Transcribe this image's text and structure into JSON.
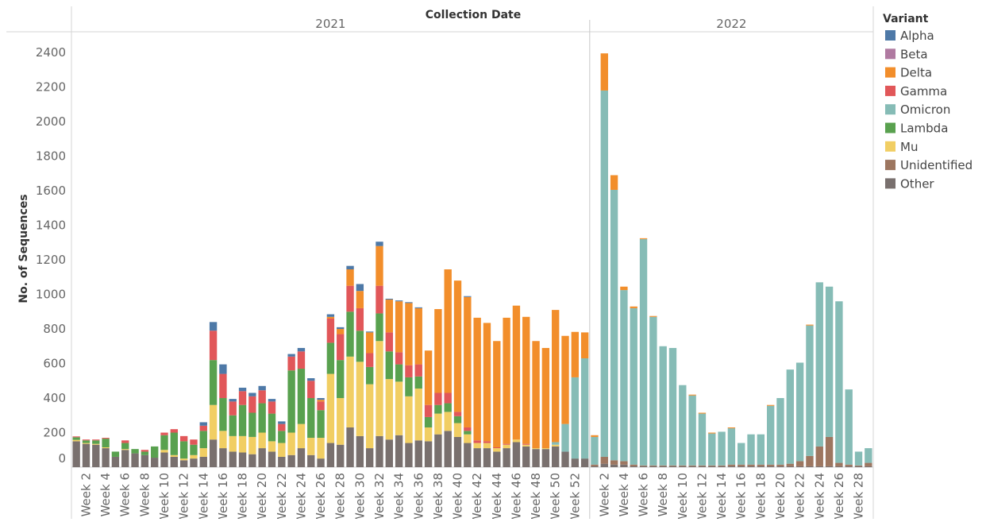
{
  "chart_data": [
    {
      "type": "bar",
      "stacked": true,
      "title": "Collection Date",
      "panel_label": "2021",
      "y_label": "No. of Sequences",
      "legend_title": "Variant",
      "ylim": [
        0,
        2520
      ],
      "yticks": [
        0,
        200,
        400,
        600,
        800,
        1000,
        1200,
        1400,
        1600,
        1800,
        2000,
        2200,
        2400
      ],
      "categories": [
        null,
        "Week 2",
        null,
        "Week 4",
        null,
        "Week 6",
        null,
        "Week 8",
        null,
        "Week 10",
        null,
        "Week 12",
        null,
        "Week 14",
        null,
        "Week 16",
        null,
        "Week 18",
        null,
        "Week 20",
        null,
        "Week 22",
        null,
        "Week 24",
        null,
        "Week 26",
        null,
        "Week 28",
        null,
        "Week 30",
        null,
        "Week 32",
        null,
        "Week 34",
        null,
        "Week 36",
        null,
        "Week 38",
        null,
        "Week 40",
        null,
        "Week 42",
        null,
        "Week 44",
        null,
        "Week 46",
        null,
        "Week 48",
        null,
        "Week 50",
        null,
        "Week 52",
        null
      ],
      "series": [
        {
          "name": "Alpha",
          "color": "#4e79a7",
          "values": [
            0,
            0,
            0,
            0,
            0,
            0,
            0,
            0,
            0,
            0,
            0,
            0,
            0,
            20,
            50,
            55,
            15,
            20,
            20,
            25,
            15,
            15,
            15,
            20,
            15,
            10,
            15,
            10,
            20,
            40,
            5,
            25,
            5,
            5,
            5,
            5,
            0,
            0,
            0,
            0,
            5,
            0,
            0,
            0,
            0,
            0,
            0,
            0,
            0,
            0,
            0,
            0,
            0
          ]
        },
        {
          "name": "Beta",
          "color": "#b07aa1",
          "values": [
            0,
            0,
            0,
            0,
            0,
            0,
            0,
            0,
            0,
            0,
            0,
            0,
            0,
            0,
            0,
            0,
            0,
            0,
            0,
            0,
            0,
            0,
            0,
            0,
            0,
            0,
            0,
            0,
            0,
            0,
            0,
            0,
            0,
            0,
            0,
            0,
            0,
            0,
            0,
            0,
            0,
            0,
            0,
            0,
            0,
            0,
            0,
            0,
            0,
            0,
            0,
            0,
            0
          ]
        },
        {
          "name": "Delta",
          "color": "#f28e2b",
          "values": [
            0,
            0,
            0,
            0,
            0,
            0,
            0,
            0,
            0,
            0,
            0,
            0,
            0,
            0,
            0,
            0,
            0,
            0,
            0,
            0,
            0,
            0,
            0,
            0,
            0,
            10,
            10,
            30,
            95,
            100,
            120,
            230,
            190,
            295,
            360,
            325,
            315,
            485,
            715,
            760,
            755,
            710,
            685,
            615,
            730,
            775,
            735,
            620,
            580,
            765,
            510,
            263,
            150
          ]
        },
        {
          "name": "Gamma",
          "color": "#e15759",
          "values": [
            5,
            5,
            5,
            5,
            0,
            15,
            0,
            10,
            0,
            15,
            20,
            30,
            30,
            30,
            170,
            140,
            80,
            80,
            95,
            75,
            70,
            40,
            80,
            100,
            100,
            50,
            140,
            150,
            150,
            130,
            80,
            160,
            110,
            70,
            70,
            70,
            70,
            70,
            60,
            25,
            20,
            15,
            10,
            5,
            5,
            0,
            5,
            0,
            0,
            0,
            0,
            0,
            0
          ]
        },
        {
          "name": "Omicron",
          "color": "#86bcb6",
          "values": [
            0,
            0,
            0,
            0,
            0,
            0,
            0,
            0,
            0,
            0,
            0,
            0,
            0,
            0,
            0,
            0,
            0,
            0,
            0,
            0,
            0,
            0,
            0,
            0,
            0,
            0,
            0,
            0,
            0,
            0,
            0,
            0,
            0,
            0,
            0,
            0,
            0,
            0,
            0,
            0,
            0,
            0,
            0,
            0,
            0,
            0,
            0,
            0,
            0,
            15,
            160,
            470,
            580
          ]
        },
        {
          "name": "Lambda",
          "color": "#59a14f",
          "values": [
            15,
            15,
            20,
            50,
            30,
            35,
            25,
            20,
            65,
            85,
            130,
            100,
            60,
            100,
            260,
            190,
            120,
            180,
            140,
            170,
            160,
            70,
            360,
            320,
            230,
            160,
            180,
            220,
            260,
            180,
            100,
            160,
            160,
            100,
            110,
            70,
            60,
            50,
            50,
            40,
            20,
            0,
            0,
            0,
            0,
            0,
            0,
            0,
            0,
            0,
            0,
            0,
            0
          ]
        },
        {
          "name": "Mu",
          "color": "#f1ce63",
          "values": [
            8,
            5,
            5,
            5,
            0,
            5,
            0,
            0,
            0,
            15,
            10,
            10,
            20,
            50,
            200,
            100,
            90,
            95,
            100,
            90,
            60,
            80,
            130,
            140,
            100,
            120,
            400,
            270,
            410,
            430,
            370,
            550,
            350,
            310,
            270,
            300,
            80,
            120,
            110,
            80,
            50,
            30,
            30,
            20,
            20,
            15,
            10,
            5,
            5,
            10,
            0,
            0,
            0
          ]
        },
        {
          "name": "Unidentified",
          "color": "#9d7660",
          "values": [
            0,
            0,
            0,
            0,
            0,
            0,
            0,
            0,
            0,
            0,
            0,
            0,
            0,
            0,
            0,
            0,
            0,
            0,
            0,
            0,
            0,
            0,
            0,
            0,
            0,
            0,
            0,
            0,
            0,
            0,
            0,
            0,
            0,
            0,
            0,
            0,
            0,
            0,
            0,
            0,
            0,
            0,
            0,
            0,
            0,
            0,
            0,
            0,
            0,
            0,
            0,
            0,
            0
          ]
        },
        {
          "name": "Other",
          "color": "#79706e",
          "values": [
            150,
            135,
            130,
            110,
            60,
            100,
            80,
            70,
            55,
            85,
            60,
            40,
            50,
            60,
            160,
            110,
            90,
            85,
            75,
            110,
            90,
            60,
            70,
            110,
            70,
            50,
            140,
            130,
            230,
            180,
            110,
            180,
            160,
            185,
            140,
            155,
            150,
            190,
            210,
            175,
            140,
            110,
            110,
            90,
            110,
            145,
            120,
            105,
            105,
            120,
            90,
            50,
            50
          ]
        }
      ]
    },
    {
      "type": "bar",
      "stacked": true,
      "panel_label": "2022",
      "ylim": [
        0,
        2520
      ],
      "categories": [
        null,
        "Week 2",
        null,
        "Week 4",
        null,
        "Week 6",
        null,
        "Week 8",
        null,
        "Week 10",
        null,
        "Week 12",
        null,
        "Week 14",
        null,
        "Week 16",
        null,
        "Week 18",
        null,
        "Week 20",
        null,
        "Week 22",
        null,
        "Week 24",
        null,
        "Week 26",
        null,
        "Week 28",
        null
      ],
      "series": [
        {
          "name": "Delta",
          "color": "#f28e2b",
          "values": [
            10,
            215,
            85,
            20,
            10,
            5,
            5,
            0,
            0,
            0,
            5,
            5,
            5,
            0,
            5,
            0,
            0,
            0,
            5,
            0,
            0,
            0,
            5,
            0,
            0,
            0,
            0,
            0,
            0
          ]
        },
        {
          "name": "Omicron",
          "color": "#86bcb6",
          "values": [
            160,
            2120,
            1565,
            990,
            905,
            1310,
            860,
            690,
            680,
            465,
            405,
            300,
            185,
            195,
            210,
            125,
            175,
            175,
            340,
            385,
            545,
            570,
            755,
            950,
            870,
            935,
            435,
            80,
            85
          ]
        },
        {
          "name": "Unidentified",
          "color": "#9d7660",
          "values": [
            10,
            40,
            25,
            20,
            10,
            5,
            5,
            5,
            5,
            5,
            5,
            5,
            5,
            5,
            10,
            10,
            10,
            10,
            10,
            10,
            15,
            30,
            60,
            115,
            170,
            20,
            10,
            5,
            20
          ]
        },
        {
          "name": "Other",
          "color": "#79706e",
          "values": [
            5,
            20,
            15,
            15,
            5,
            5,
            5,
            5,
            5,
            5,
            5,
            5,
            5,
            5,
            5,
            5,
            5,
            5,
            5,
            5,
            5,
            5,
            5,
            5,
            5,
            5,
            5,
            5,
            5
          ]
        }
      ]
    }
  ]
}
